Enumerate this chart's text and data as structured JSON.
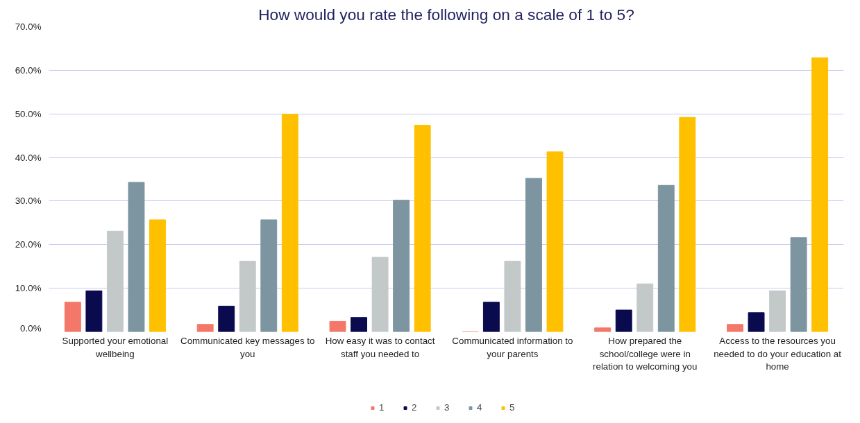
{
  "chart_data": {
    "type": "bar",
    "title": "How would you rate the following on a scale of 1 to 5?",
    "categories": [
      "Supported your emotional wellbeing",
      "Communicated key messages to you",
      "How easy it was to contact staff you needed to",
      "Communicated information to your parents",
      "How prepared the school/college were in relation to welcoming you",
      "Access to the resources you needed to do your education at home"
    ],
    "series": [
      {
        "name": "1",
        "color": "#f4786a",
        "values": [
          6.8,
          1.7,
          2.4,
          0,
          0.9,
          1.7
        ]
      },
      {
        "name": "2",
        "color": "#0a0a4f",
        "values": [
          9.4,
          5.9,
          3.3,
          6.8,
          5.0,
          4.4
        ]
      },
      {
        "name": "3",
        "color": "#c3c8c9",
        "values": [
          23.1,
          16.2,
          17.1,
          16.2,
          11.0,
          9.4
        ]
      },
      {
        "name": "4",
        "color": "#7d95a0",
        "values": [
          34.3,
          25.7,
          30.2,
          35.2,
          33.6,
          21.6
        ]
      },
      {
        "name": "5",
        "color": "#ffc000",
        "values": [
          25.7,
          49.9,
          47.4,
          41.3,
          49.2,
          62.9
        ]
      }
    ],
    "ylim": [
      0,
      70
    ],
    "yticks": [
      {
        "value": 0,
        "label": "0.0%"
      },
      {
        "value": 10,
        "label": "10.0%"
      },
      {
        "value": 20,
        "label": "20.0%"
      },
      {
        "value": 30,
        "label": "30.0%"
      },
      {
        "value": 40,
        "label": "40.0%"
      },
      {
        "value": 50,
        "label": "50.0%"
      },
      {
        "value": 60,
        "label": "60.0%"
      },
      {
        "value": 70,
        "label": "70.0%"
      }
    ],
    "grid": "y",
    "legend": "bottom"
  }
}
